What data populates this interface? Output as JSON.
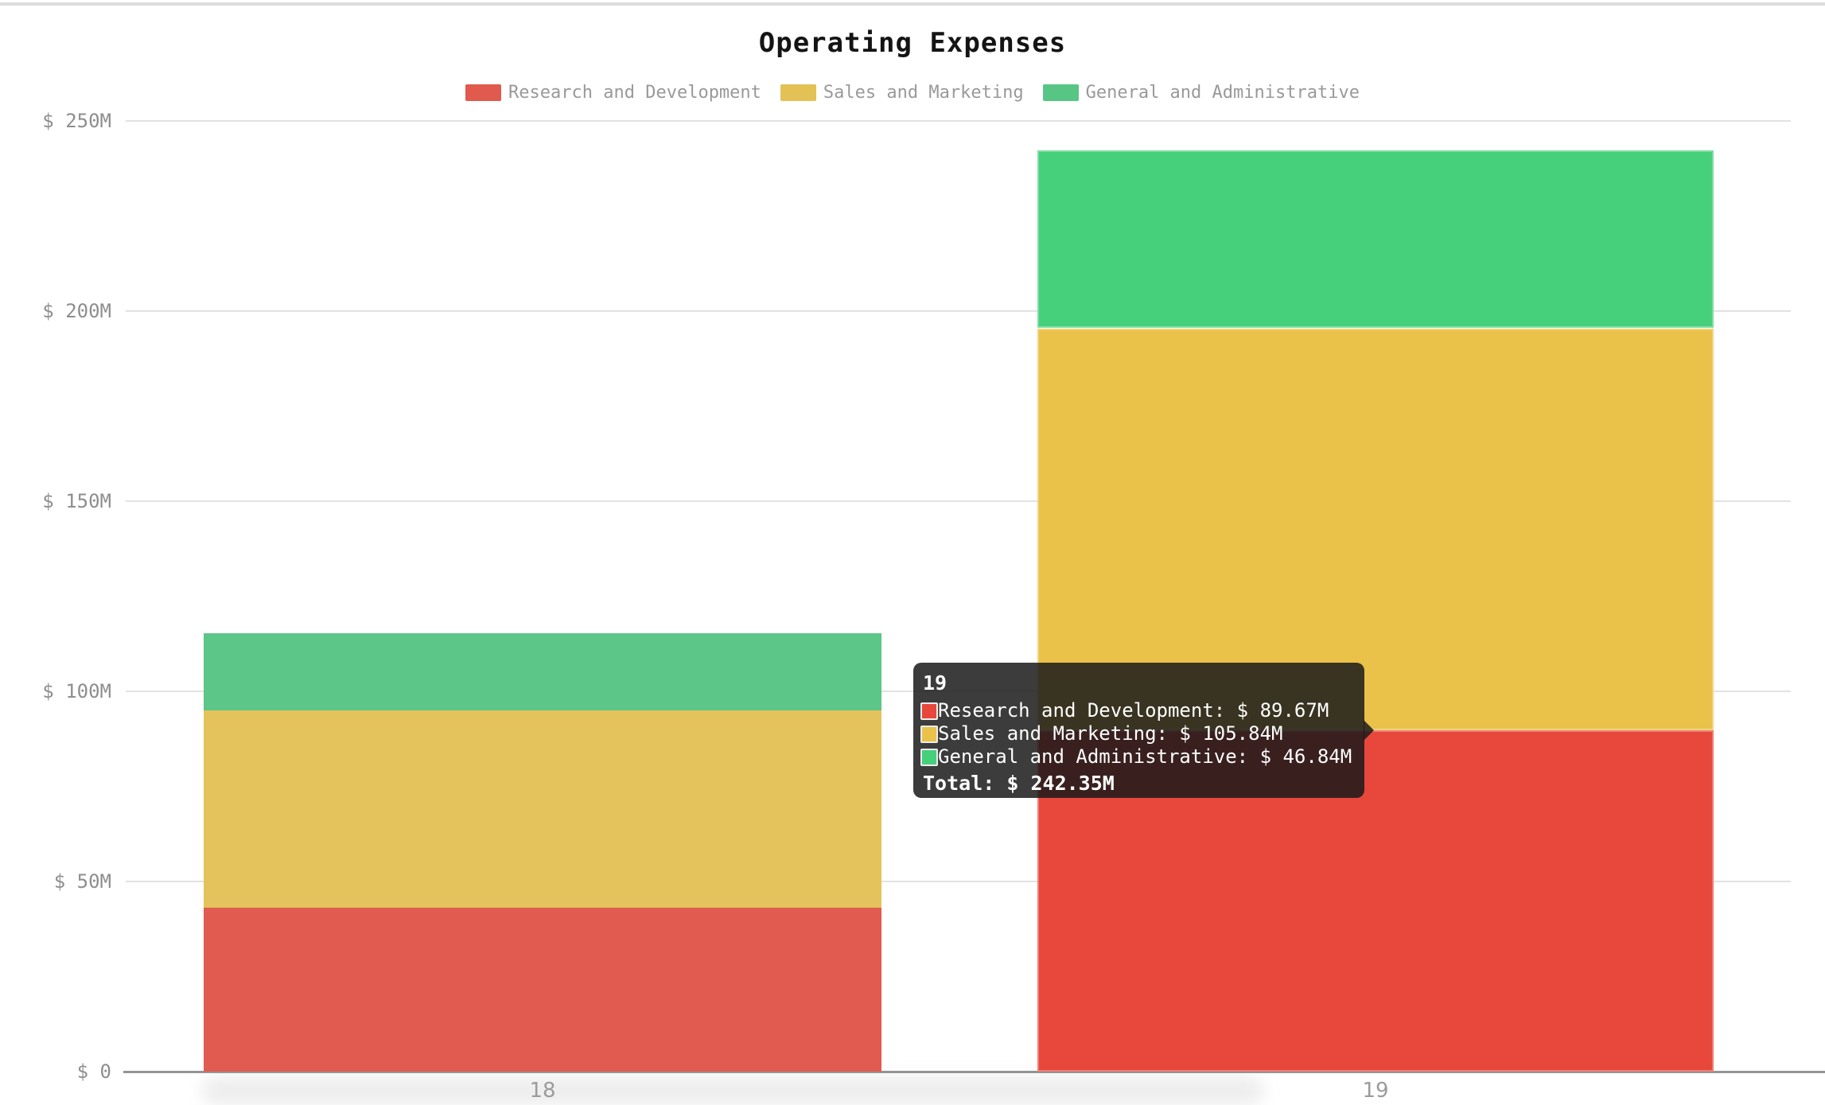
{
  "title": "Operating Expenses",
  "legend": {
    "items": [
      {
        "label": "Research and Development",
        "color": "#e05a4e"
      },
      {
        "label": "Sales and Marketing",
        "color": "#e4c155"
      },
      {
        "label": "General and Administrative",
        "color": "#57c684"
      }
    ]
  },
  "y_axis": {
    "ticks": [
      {
        "label": "$ 250M",
        "value": 250
      },
      {
        "label": "$ 200M",
        "value": 200
      },
      {
        "label": "$ 150M",
        "value": 150
      },
      {
        "label": "$ 100M",
        "value": 100
      },
      {
        "label": "$ 50M",
        "value": 50
      },
      {
        "label": "$ 0",
        "value": 0
      }
    ]
  },
  "x_axis": {
    "labels": [
      "18",
      "19"
    ]
  },
  "tooltip": {
    "header": "19",
    "rows": [
      {
        "text": "Research and Development: $ 89.67M",
        "marker_color": "#e8473c"
      },
      {
        "text": "Sales and Marketing: $ 105.84M",
        "marker_color": "#eac24a"
      },
      {
        "text": "General and Administrative: $ 46.84M",
        "marker_color": "#47d07b"
      }
    ],
    "total_text": "Total: $ 242.35M"
  },
  "chart_data": {
    "type": "bar",
    "stacked": true,
    "title": "Operating Expenses",
    "categories": [
      "18",
      "19"
    ],
    "series": [
      {
        "name": "Research and Development",
        "color_active": "#e8473c",
        "color_inactive": "#e15b50",
        "values": [
          43.1,
          89.67
        ]
      },
      {
        "name": "Sales and Marketing",
        "color_active": "#eac24a",
        "color_inactive": "#e4c35c",
        "values": [
          51.9,
          105.84
        ]
      },
      {
        "name": "General and Administrative",
        "color_active": "#47d07b",
        "color_inactive": "#5bc687",
        "values": [
          20.3,
          46.84
        ]
      }
    ],
    "totals": [
      115.3,
      242.35
    ],
    "ylim": [
      0,
      250
    ],
    "y_tick_step": 50,
    "y_unit": "$M",
    "legend_position": "top",
    "grid": true,
    "hovered_category_index": 1
  }
}
